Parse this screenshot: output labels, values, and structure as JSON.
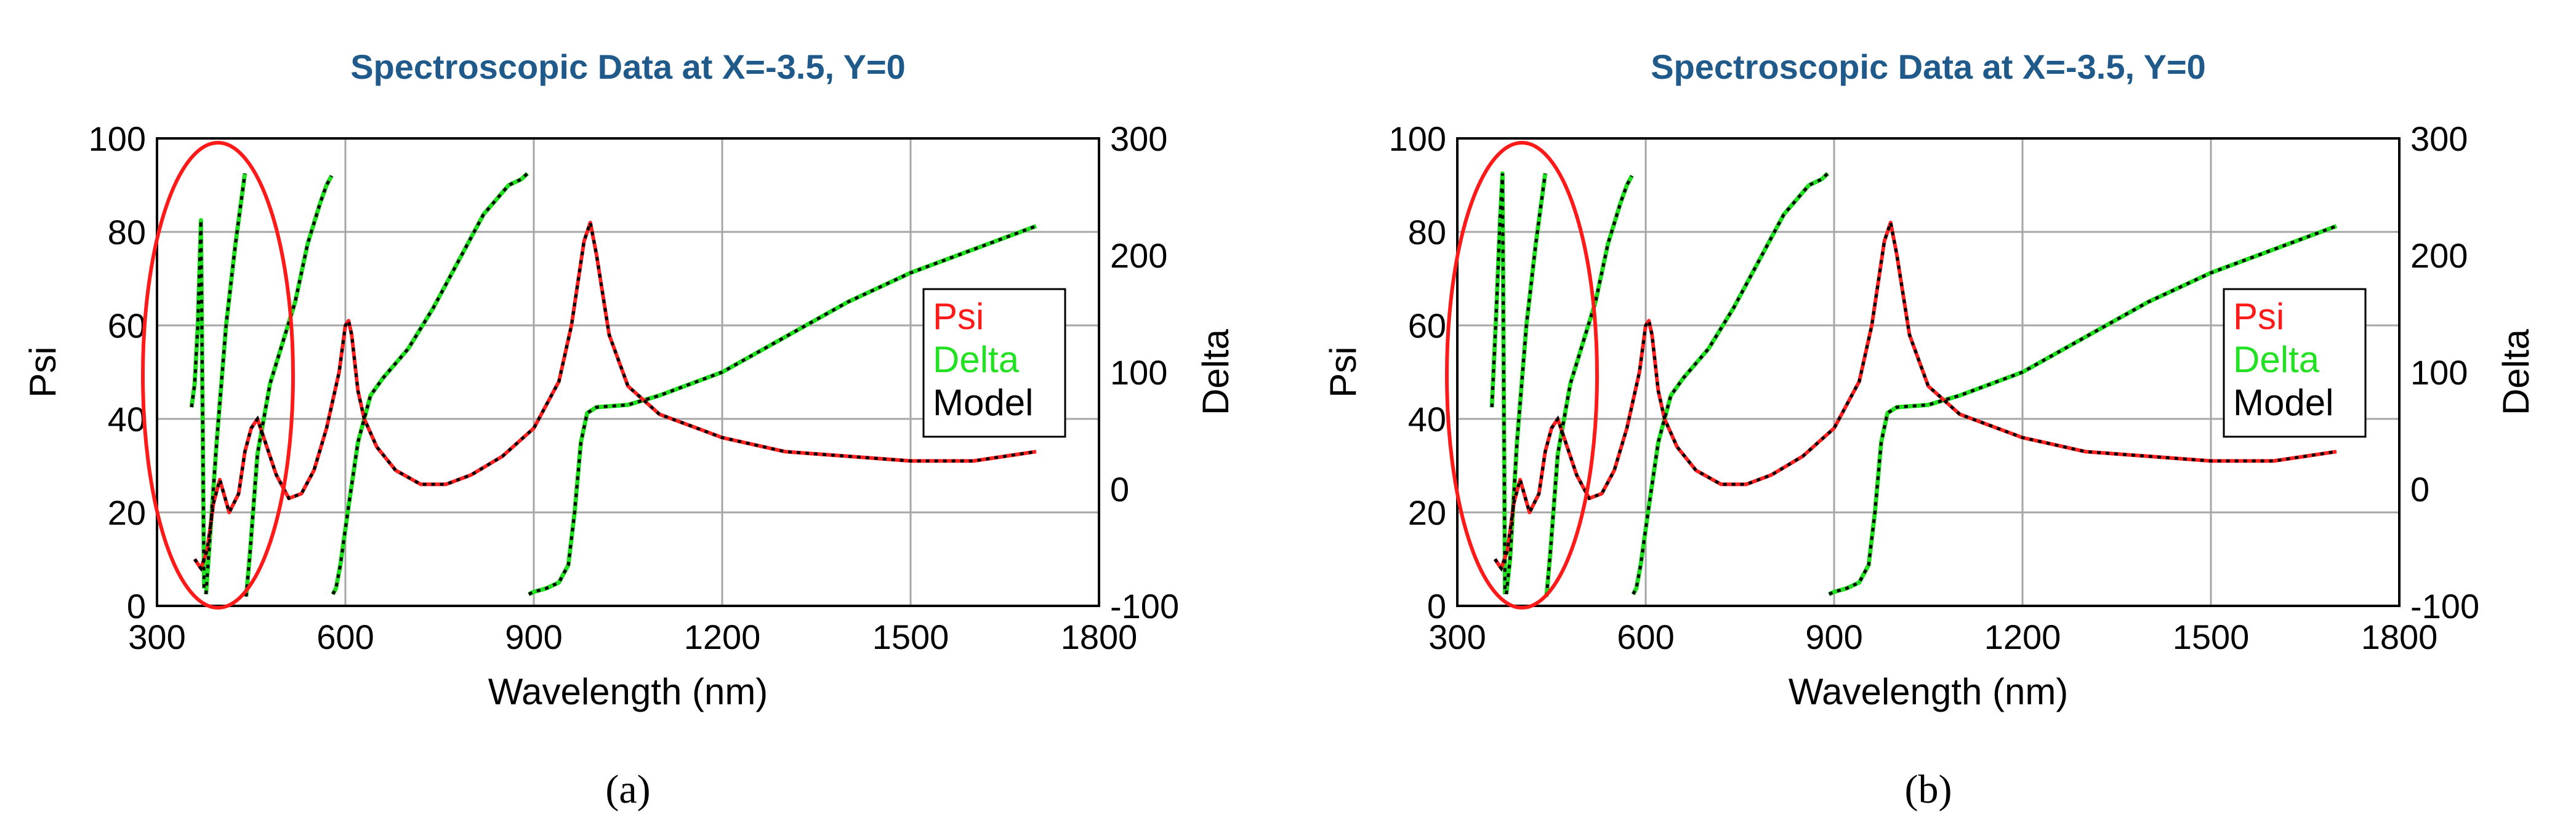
{
  "chart_data": [
    {
      "type": "line",
      "panel": "a",
      "title": "Spectroscopic Data at X=-3.5, Y=0",
      "xlabel": "Wavelength (nm)",
      "ylabel": "Psi",
      "y2label": "Delta",
      "xlim": [
        300,
        1800
      ],
      "ylim": [
        0,
        100
      ],
      "y2lim": [
        -100,
        300
      ],
      "xticks": [
        "300",
        "600",
        "900",
        "1200",
        "1500",
        "1800"
      ],
      "yticks": [
        "0",
        "20",
        "40",
        "60",
        "80",
        "100"
      ],
      "y2ticks": [
        "-100",
        "0",
        "100",
        "200",
        "300"
      ],
      "grid": true,
      "legend": [
        "Psi",
        "Delta",
        "Model"
      ],
      "legend_position": "right",
      "annotation": "red ellipse around 300-500 nm",
      "series": [
        {
          "name": "Psi",
          "axis": "left",
          "color": "#ff2020",
          "x": [
            360,
            370,
            380,
            390,
            400,
            415,
            430,
            440,
            450,
            460,
            470,
            490,
            510,
            530,
            550,
            570,
            590,
            600,
            605,
            610,
            615,
            620,
            630,
            650,
            680,
            720,
            760,
            800,
            850,
            900,
            940,
            960,
            980,
            990,
            1000,
            1020,
            1050,
            1100,
            1200,
            1300,
            1400,
            1500,
            1600,
            1700
          ],
          "y": [
            10,
            8,
            12,
            22,
            27,
            20,
            24,
            33,
            38,
            40,
            36,
            28,
            23,
            24,
            29,
            38,
            50,
            60,
            61,
            58,
            52,
            46,
            40,
            34,
            29,
            26,
            26,
            28,
            32,
            38,
            48,
            60,
            78,
            82,
            75,
            58,
            47,
            41,
            36,
            33,
            32,
            31,
            31,
            33
          ]
        },
        {
          "name": "Delta",
          "axis": "right",
          "color": "#20e020",
          "segments": [
            {
              "x": [
                355,
                360,
                365,
                370,
                375
              ],
              "y": [
                70,
                90,
                140,
                230,
                -85
              ]
            },
            {
              "x": [
                378,
                382,
                395,
                410,
                425,
                440
              ],
              "y": [
                -90,
                -60,
                40,
                140,
                210,
                270
              ]
            },
            {
              "x": [
                442,
                448,
                460,
                480,
                500,
                520,
                540,
                560,
                570,
                578
              ],
              "y": [
                -92,
                -55,
                30,
                90,
                125,
                160,
                210,
                245,
                260,
                268
              ]
            },
            {
              "x": [
                580,
                585,
                592,
                605,
                620,
                640,
                660,
                700,
                740,
                780,
                820,
                860,
                880,
                890
              ],
              "y": [
                -90,
                -85,
                -65,
                -15,
                40,
                80,
                95,
                120,
                155,
                195,
                235,
                260,
                265,
                270
              ]
            },
            {
              "x": [
                892,
                900,
                920,
                940,
                955,
                965,
                975,
                985,
                1000,
                1050,
                1100,
                1200,
                1300,
                1400,
                1500,
                1600,
                1700
              ],
              "y": [
                -90,
                -88,
                -85,
                -80,
                -65,
                -20,
                40,
                65,
                70,
                72,
                80,
                100,
                130,
                160,
                185,
                205,
                225
              ]
            }
          ]
        },
        {
          "name": "Model",
          "axis": "both",
          "color": "#000000",
          "style": "dotted"
        }
      ]
    },
    {
      "type": "line",
      "panel": "b",
      "title": "Spectroscopic Data at X=-3.5, Y=0",
      "xlabel": "Wavelength (nm)",
      "ylabel": "Psi",
      "y2label": "Delta",
      "xlim": [
        300,
        1800
      ],
      "ylim": [
        0,
        100
      ],
      "y2lim": [
        -100,
        300
      ],
      "xticks": [
        "300",
        "600",
        "900",
        "1200",
        "1500",
        "1800"
      ],
      "yticks": [
        "0",
        "20",
        "40",
        "60",
        "80",
        "100"
      ],
      "y2ticks": [
        "-100",
        "0",
        "100",
        "200",
        "300"
      ],
      "grid": true,
      "legend": [
        "Psi",
        "Delta",
        "Model"
      ],
      "legend_position": "right",
      "annotation": "red ellipse around 300-500 nm",
      "series": [
        {
          "name": "Psi",
          "axis": "left",
          "color": "#ff2020",
          "x": [
            360,
            370,
            380,
            390,
            400,
            415,
            430,
            440,
            450,
            460,
            470,
            490,
            510,
            530,
            550,
            570,
            590,
            600,
            605,
            610,
            615,
            620,
            630,
            650,
            680,
            720,
            760,
            800,
            850,
            900,
            940,
            960,
            980,
            990,
            1000,
            1020,
            1050,
            1100,
            1200,
            1300,
            1400,
            1500,
            1600,
            1700
          ],
          "y": [
            10,
            8,
            12,
            22,
            27,
            20,
            24,
            33,
            38,
            40,
            36,
            28,
            23,
            24,
            29,
            38,
            50,
            60,
            61,
            58,
            52,
            46,
            40,
            34,
            29,
            26,
            26,
            28,
            32,
            38,
            48,
            60,
            78,
            82,
            75,
            58,
            47,
            41,
            36,
            33,
            32,
            31,
            31,
            33
          ]
        },
        {
          "name": "Delta",
          "axis": "right",
          "color": "#20e020",
          "segments": [
            {
              "x": [
                355,
                362,
                368,
                372,
                376
              ],
              "y": [
                70,
                150,
                230,
                270,
                -90
              ]
            },
            {
              "x": [
                378,
                384,
                395,
                410,
                425,
                440
              ],
              "y": [
                -90,
                -60,
                40,
                140,
                210,
                270
              ]
            },
            {
              "x": [
                442,
                448,
                460,
                480,
                500,
                520,
                540,
                560,
                570,
                578
              ],
              "y": [
                -92,
                -55,
                30,
                90,
                125,
                160,
                210,
                245,
                260,
                268
              ]
            },
            {
              "x": [
                580,
                585,
                592,
                605,
                620,
                640,
                660,
                700,
                740,
                780,
                820,
                860,
                880,
                890
              ],
              "y": [
                -90,
                -85,
                -65,
                -15,
                40,
                80,
                95,
                120,
                155,
                195,
                235,
                260,
                265,
                270
              ]
            },
            {
              "x": [
                892,
                900,
                920,
                940,
                955,
                965,
                975,
                985,
                1000,
                1050,
                1100,
                1200,
                1300,
                1400,
                1500,
                1600,
                1700
              ],
              "y": [
                -90,
                -88,
                -85,
                -80,
                -65,
                -20,
                40,
                65,
                70,
                72,
                80,
                100,
                130,
                160,
                185,
                205,
                225
              ]
            }
          ]
        },
        {
          "name": "Model",
          "axis": "both",
          "color": "#000000",
          "style": "dotted"
        }
      ]
    }
  ],
  "panel_labels": [
    "(a)",
    "(b)"
  ]
}
